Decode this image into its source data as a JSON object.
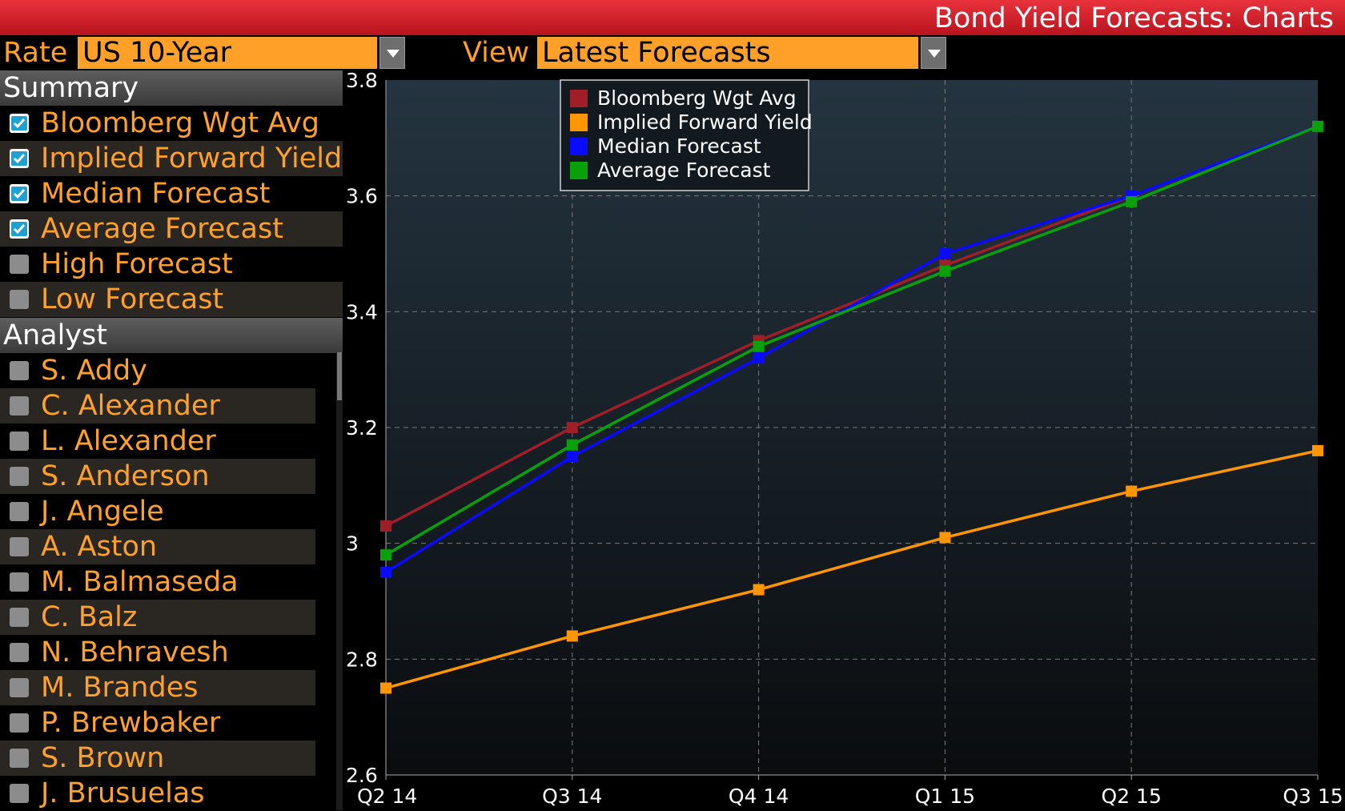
{
  "window_title": "Bond Yield Forecasts: Charts",
  "controls": {
    "rate_label": "Rate",
    "rate_value": "US 10-Year",
    "view_label": "View",
    "view_value": "Latest Forecasts"
  },
  "summary": {
    "header": "Summary",
    "items": [
      {
        "label": "Bloomberg Wgt Avg",
        "checked": true
      },
      {
        "label": "Implied Forward Yield",
        "checked": true
      },
      {
        "label": "Median Forecast",
        "checked": true
      },
      {
        "label": "Average Forecast",
        "checked": true
      },
      {
        "label": "High Forecast",
        "checked": false
      },
      {
        "label": "Low Forecast",
        "checked": false
      }
    ]
  },
  "analyst": {
    "header": "Analyst",
    "items": [
      {
        "label": "S. Addy",
        "checked": false
      },
      {
        "label": "C. Alexander",
        "checked": false
      },
      {
        "label": "L. Alexander",
        "checked": false
      },
      {
        "label": "S. Anderson",
        "checked": false
      },
      {
        "label": "J. Angele",
        "checked": false
      },
      {
        "label": "A. Aston",
        "checked": false
      },
      {
        "label": "M. Balmaseda",
        "checked": false
      },
      {
        "label": "C. Balz",
        "checked": false
      },
      {
        "label": "N. Behravesh",
        "checked": false
      },
      {
        "label": "M. Brandes",
        "checked": false
      },
      {
        "label": "P. Brewbaker",
        "checked": false
      },
      {
        "label": "S. Brown",
        "checked": false
      },
      {
        "label": "J. Brusuelas",
        "checked": false
      }
    ]
  },
  "colors": {
    "accent": "#ffa028",
    "title_bar": "#d21e28",
    "background": "#000000"
  },
  "chart_data": {
    "type": "line",
    "categories": [
      "Q2 14",
      "Q3 14",
      "Q4 14",
      "Q1 15",
      "Q2 15",
      "Q3 15"
    ],
    "ylim": [
      2.6,
      3.8
    ],
    "yticks": [
      "2.6",
      "2.8",
      "3",
      "3.2",
      "3.4",
      "3.6",
      "3.8"
    ],
    "grid": true,
    "legend_position": "top-left",
    "series": [
      {
        "name": "Bloomberg Wgt Avg",
        "color": "#a01e28",
        "values": [
          3.03,
          3.2,
          3.35,
          3.48,
          3.6,
          3.72
        ]
      },
      {
        "name": "Implied Forward Yield",
        "color": "#ff9600",
        "values": [
          2.75,
          2.84,
          2.92,
          3.01,
          3.09,
          3.16
        ]
      },
      {
        "name": "Median Forecast",
        "color": "#0a0aff",
        "values": [
          2.95,
          3.15,
          3.32,
          3.5,
          3.6,
          3.72
        ]
      },
      {
        "name": "Average Forecast",
        "color": "#0aa00a",
        "values": [
          2.98,
          3.17,
          3.34,
          3.47,
          3.59,
          3.72
        ]
      }
    ]
  }
}
